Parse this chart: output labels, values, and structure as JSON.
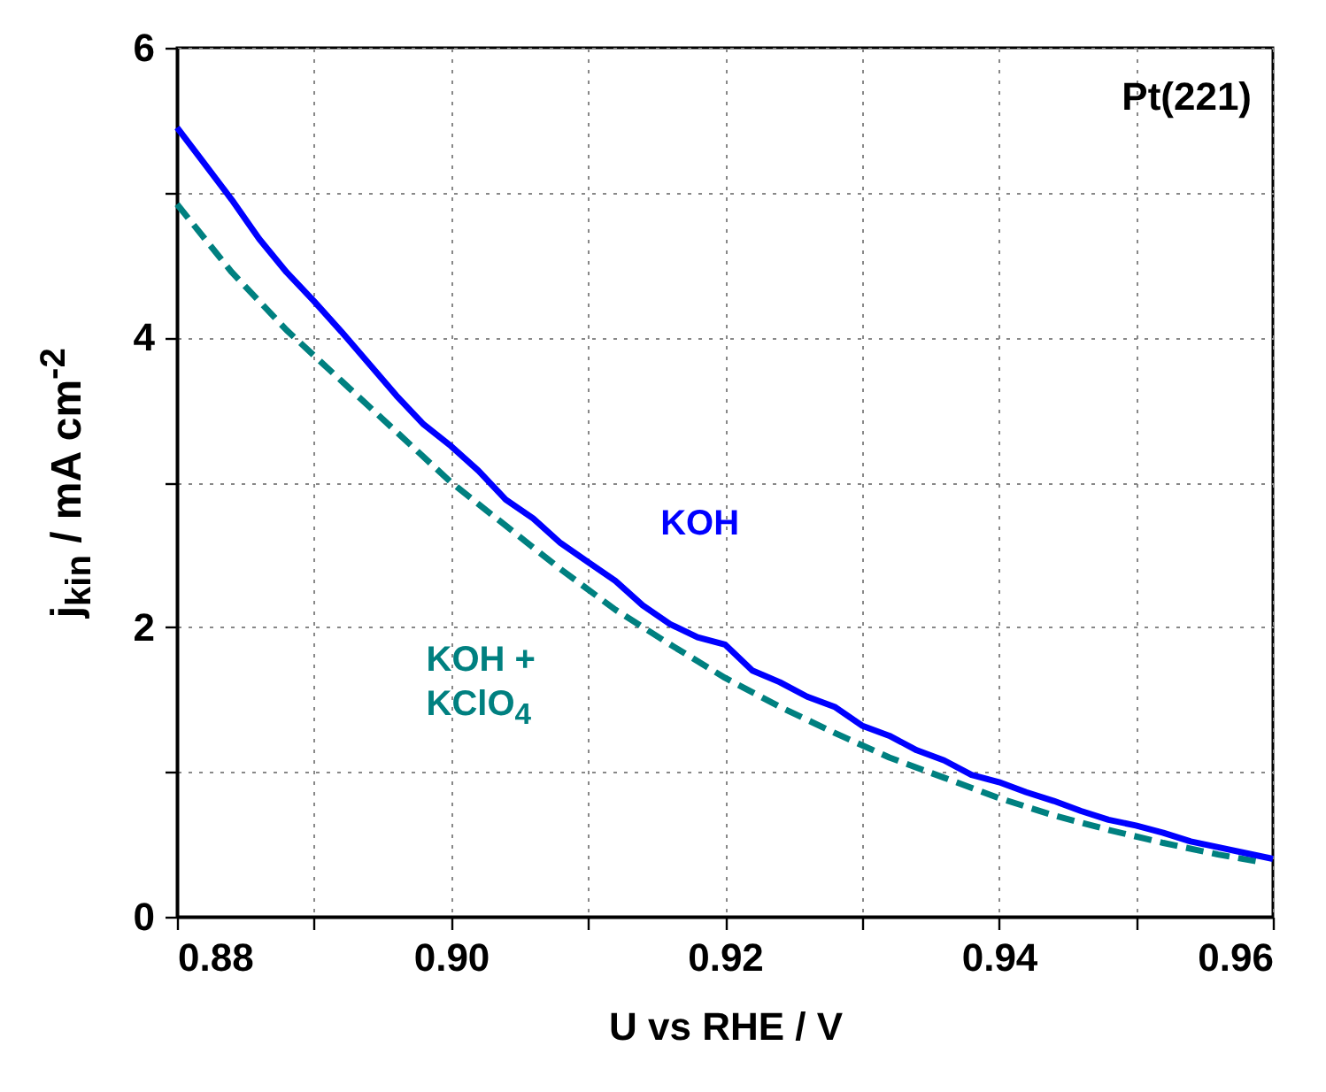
{
  "chart_data": {
    "type": "line",
    "xlabel": "U vs RHE / V",
    "ylabel": "j$_{kin}$ / mA cm$^{-2}$",
    "annotations": [
      "Pt(221)"
    ],
    "xlim": [
      0.88,
      0.96
    ],
    "xticks": [
      {
        "value": 0.88,
        "label": "0.88"
      },
      {
        "value": 0.89,
        "label": null
      },
      {
        "value": 0.9,
        "label": "0.90"
      },
      {
        "value": 0.91,
        "label": null
      },
      {
        "value": 0.92,
        "label": "0.92"
      },
      {
        "value": 0.93,
        "label": null
      },
      {
        "value": 0.94,
        "label": "0.94"
      },
      {
        "value": 0.95,
        "label": null
      },
      {
        "value": 0.96,
        "label": "0.96"
      }
    ],
    "ylim": [
      0,
      6
    ],
    "yticks": [
      0,
      {
        "value": 1,
        "label": null
      },
      2,
      {
        "value": 3,
        "label": null
      },
      4,
      {
        "value": 5,
        "label": null
      },
      6
    ],
    "grid": true,
    "legend": false,
    "marker": "none",
    "series": [
      {
        "name": "KOH",
        "color": "#0000ff",
        "line_style": "solid",
        "x": [
          0.88,
          0.882,
          0.884,
          0.886,
          0.888,
          0.89,
          0.892,
          0.894,
          0.896,
          0.898,
          0.9,
          0.902,
          0.904,
          0.906,
          0.908,
          0.91,
          0.912,
          0.914,
          0.916,
          0.918,
          0.92,
          0.922,
          0.924,
          0.926,
          0.928,
          0.93,
          0.932,
          0.934,
          0.936,
          0.938,
          0.94,
          0.942,
          0.944,
          0.946,
          0.948,
          0.95,
          0.952,
          0.954,
          0.956,
          0.958,
          0.96
        ],
        "values": [
          5.45,
          5.2,
          4.95,
          4.68,
          4.45,
          4.25,
          4.04,
          3.82,
          3.6,
          3.4,
          3.25,
          3.08,
          2.88,
          2.75,
          2.58,
          2.45,
          2.32,
          2.15,
          2.02,
          1.93,
          1.88,
          1.7,
          1.62,
          1.52,
          1.45,
          1.32,
          1.25,
          1.15,
          1.08,
          0.98,
          0.93,
          0.86,
          0.8,
          0.73,
          0.67,
          0.63,
          0.58,
          0.52,
          0.48,
          0.44,
          0.4
        ]
      },
      {
        "name": "KOH + KClO$_{4}$",
        "color": "#008080",
        "line_style": "dashed",
        "x": [
          0.88,
          0.884,
          0.888,
          0.892,
          0.896,
          0.9,
          0.904,
          0.908,
          0.912,
          0.916,
          0.92,
          0.924,
          0.928,
          0.932,
          0.936,
          0.94,
          0.944,
          0.948,
          0.952,
          0.956,
          0.959
        ],
        "values": [
          4.92,
          4.45,
          4.05,
          3.7,
          3.35,
          3.0,
          2.7,
          2.4,
          2.12,
          1.88,
          1.65,
          1.45,
          1.27,
          1.1,
          0.96,
          0.82,
          0.7,
          0.6,
          0.51,
          0.43,
          0.38
        ]
      }
    ]
  }
}
